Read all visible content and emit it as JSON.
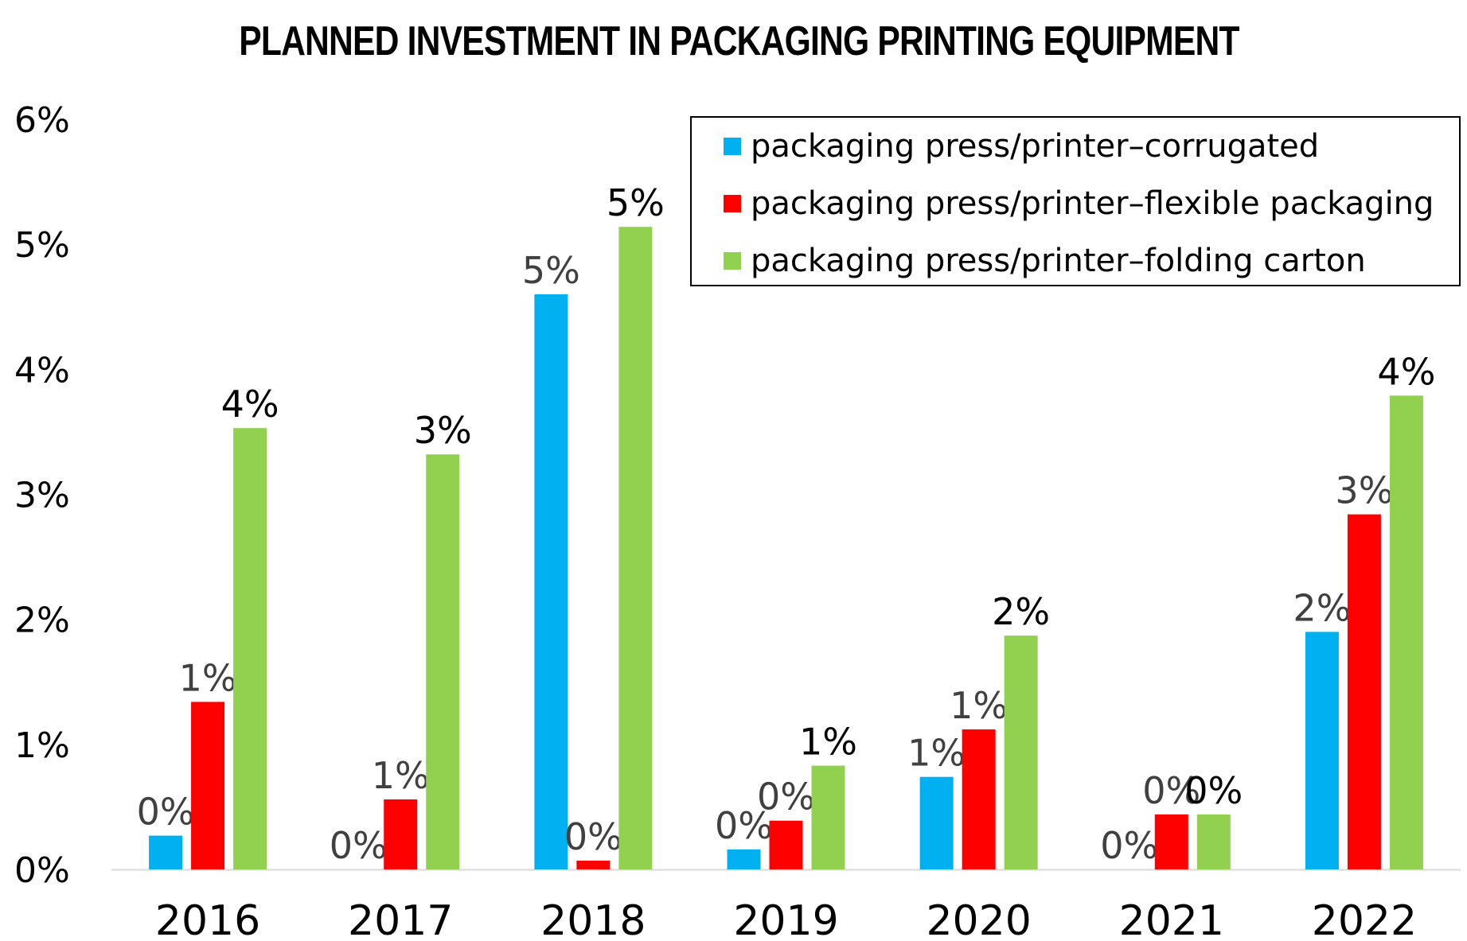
{
  "chart_data": {
    "type": "bar",
    "title": "PLANNED INVESTMENT IN PACKAGING PRINTING EQUIPMENT",
    "xlabel": "",
    "ylabel": "",
    "ylim": [
      0,
      6
    ],
    "yticks": [
      "0%",
      "1%",
      "2%",
      "3%",
      "4%",
      "5%",
      "6%"
    ],
    "categories": [
      "2016",
      "2017",
      "2018",
      "2019",
      "2020",
      "2021",
      "2022"
    ],
    "legend_position": "top-right",
    "series": [
      {
        "name": "packaging press/printer–corrugated",
        "color": "#00B0F0",
        "values": [
          0.27,
          0.0,
          4.6,
          0.16,
          0.74,
          0.0,
          1.9
        ],
        "labels": [
          "0%",
          "0%",
          "5%",
          "0%",
          "1%",
          "0%",
          "2%"
        ]
      },
      {
        "name": "packaging press/printer–flexible packaging",
        "color": "#FF0000",
        "values": [
          1.34,
          0.56,
          0.07,
          0.39,
          1.12,
          0.44,
          2.84
        ],
        "labels": [
          "1%",
          "1%",
          "0%",
          "0%",
          "1%",
          "0%",
          "3%"
        ]
      },
      {
        "name": "packaging press/printer–folding carton",
        "color": "#92D050",
        "values": [
          3.53,
          3.32,
          5.14,
          0.83,
          1.87,
          0.44,
          3.79
        ],
        "labels": [
          "4%",
          "3%",
          "5%",
          "1%",
          "2%",
          "0%",
          "4%"
        ]
      }
    ]
  }
}
